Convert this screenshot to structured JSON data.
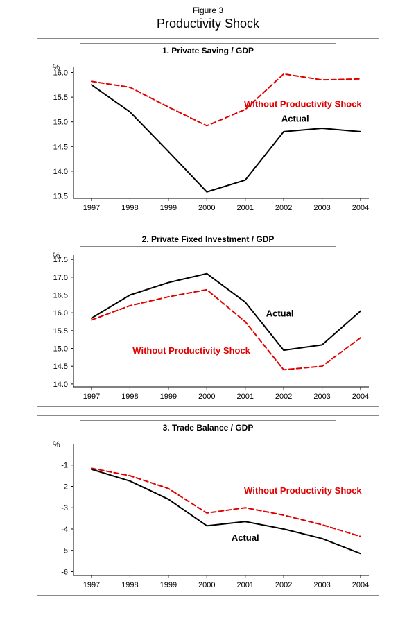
{
  "page": {
    "figure_label": "Figure 3",
    "title": "Productivity Shock"
  },
  "colors": {
    "actual": "#000000",
    "counterfactual": "#e00000"
  },
  "chart_data": [
    {
      "type": "line",
      "title": "1. Private Saving / GDP",
      "unit_label": "%",
      "x": [
        1997,
        1998,
        1999,
        2000,
        2001,
        2002,
        2003,
        2004
      ],
      "ylim": [
        13.45,
        16.12
      ],
      "yticks": [
        16.0,
        15.5,
        15.0,
        14.5,
        14.0,
        13.5
      ],
      "ytick_labels": [
        "16.0",
        "15.5",
        "15.0",
        "14.5",
        "14.0",
        "13.5"
      ],
      "grid": false,
      "legend": "inline-annotations",
      "series": [
        {
          "name": "Without Productivity Shock",
          "color": "#e00000",
          "dash": "7,4",
          "width": 2,
          "values": [
            15.82,
            15.7,
            15.3,
            14.92,
            15.25,
            15.97,
            15.85,
            15.87
          ]
        },
        {
          "name": "Actual",
          "color": "#000000",
          "dash": "",
          "width": 2,
          "values": [
            15.75,
            15.2,
            14.4,
            13.58,
            13.82,
            14.8,
            14.87,
            14.8
          ]
        }
      ],
      "annotations": [
        {
          "text": "Without Productivity Shock",
          "x": 2002.5,
          "y": 15.3,
          "color": "#e00000"
        },
        {
          "text": "Actual",
          "x": 2002.3,
          "y": 15.0,
          "color": "#000000"
        }
      ]
    },
    {
      "type": "line",
      "title": "2. Private Fixed Investment / GDP",
      "unit_label": "%",
      "x": [
        1997,
        1998,
        1999,
        2000,
        2001,
        2002,
        2003,
        2004
      ],
      "ylim": [
        13.92,
        17.62
      ],
      "yticks": [
        17.5,
        17.0,
        16.5,
        16.0,
        15.5,
        15.0,
        14.5,
        14.0
      ],
      "ytick_labels": [
        "17.5",
        "17.0",
        "16.5",
        "16.0",
        "15.5",
        "15.0",
        "14.5",
        "14.0"
      ],
      "grid": false,
      "legend": "inline-annotations",
      "series": [
        {
          "name": "Without Productivity Shock",
          "color": "#e00000",
          "dash": "7,4",
          "width": 2,
          "values": [
            15.8,
            16.2,
            16.45,
            16.65,
            15.75,
            14.4,
            14.5,
            15.3
          ]
        },
        {
          "name": "Actual",
          "color": "#000000",
          "dash": "",
          "width": 2,
          "values": [
            15.85,
            16.5,
            16.85,
            17.1,
            16.3,
            14.95,
            15.1,
            16.05
          ]
        }
      ],
      "annotations": [
        {
          "text": "Actual",
          "x": 2001.9,
          "y": 15.9,
          "color": "#000000"
        },
        {
          "text": "Without Productivity Shock",
          "x": 1999.6,
          "y": 14.85,
          "color": "#e00000"
        }
      ]
    },
    {
      "type": "line",
      "title": "3. Trade Balance / GDP",
      "unit_label": "%",
      "x": [
        1997,
        1998,
        1999,
        2000,
        2001,
        2002,
        2003,
        2004
      ],
      "ylim": [
        -6.18,
        0
      ],
      "yticks": [
        -1,
        -2,
        -3,
        -4,
        -5,
        -6
      ],
      "ytick_labels": [
        "-1",
        "-2",
        "-3",
        "-4",
        "-5",
        "-6"
      ],
      "grid": false,
      "legend": "inline-annotations",
      "series": [
        {
          "name": "Without Productivity Shock",
          "color": "#e00000",
          "dash": "7,4",
          "width": 2,
          "values": [
            -1.15,
            -1.5,
            -2.1,
            -3.25,
            -3.0,
            -3.35,
            -3.8,
            -4.35
          ]
        },
        {
          "name": "Actual",
          "color": "#000000",
          "dash": "",
          "width": 2,
          "values": [
            -1.2,
            -1.75,
            -2.6,
            -3.85,
            -3.65,
            -4.0,
            -4.45,
            -5.15
          ]
        }
      ],
      "annotations": [
        {
          "text": "Without Productivity Shock",
          "x": 2002.5,
          "y": -2.35,
          "color": "#e00000"
        },
        {
          "text": "Actual",
          "x": 2001.0,
          "y": -4.55,
          "color": "#000000"
        }
      ]
    }
  ]
}
